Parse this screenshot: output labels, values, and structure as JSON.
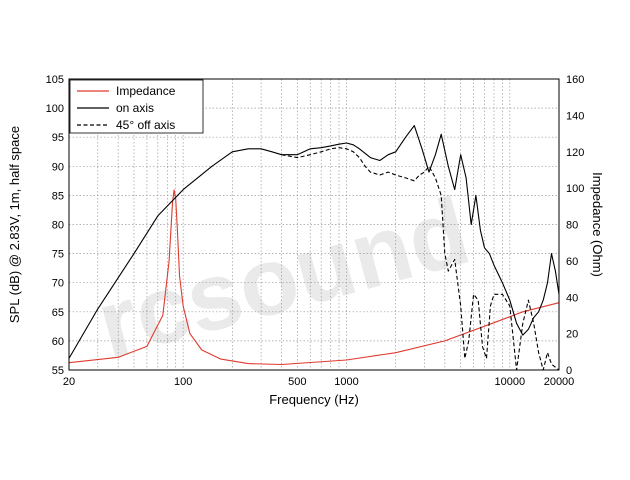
{
  "chart_data": {
    "type": "line",
    "xlabel": "Frequency (Hz)",
    "ylabel_left": "SPL (dB) @ 2.83V, 1m, half space",
    "ylabel_right": "Impedance (Ohm)",
    "xscale": "log",
    "xlim": [
      20,
      20000
    ],
    "ylim_left": [
      55,
      105
    ],
    "ylim_right": [
      0,
      160
    ],
    "x_ticks": [
      "20",
      "100",
      "500",
      "1000",
      "10000",
      "20000"
    ],
    "y_left_ticks": [
      "55",
      "60",
      "65",
      "70",
      "75",
      "80",
      "85",
      "90",
      "95",
      "100",
      "105"
    ],
    "y_right_ticks": [
      "0",
      "20",
      "40",
      "60",
      "80",
      "100",
      "120",
      "140",
      "160"
    ],
    "grid": true,
    "legend": {
      "placement": "top-left",
      "entries": [
        "Impedance",
        "on axis",
        "45° off axis"
      ]
    },
    "watermark": "rcsound",
    "series": [
      {
        "name": "Impedance",
        "axis": "right",
        "color": "#e03a2f",
        "style": "solid",
        "x": [
          20,
          40,
          60,
          75,
          82,
          86,
          88,
          90,
          92,
          95,
          100,
          110,
          130,
          170,
          250,
          400,
          1000,
          2000,
          4000,
          8000,
          12000,
          20000
        ],
        "y": [
          4,
          7,
          13,
          30,
          60,
          92,
          99,
          94,
          78,
          52,
          35,
          20,
          11,
          6,
          3.5,
          3,
          5.5,
          9.5,
          16,
          26,
          32,
          37
        ]
      },
      {
        "name": "on axis",
        "axis": "left",
        "color": "#000000",
        "style": "solid",
        "x": [
          20,
          30,
          50,
          70,
          100,
          150,
          200,
          250,
          300,
          350,
          400,
          500,
          600,
          700,
          800,
          900,
          1000,
          1100,
          1200,
          1400,
          1600,
          1800,
          2000,
          2300,
          2600,
          2900,
          3200,
          3500,
          3800,
          4200,
          4600,
          5000,
          5400,
          5800,
          6200,
          6600,
          7000,
          7500,
          8000,
          9000,
          10000,
          11000,
          12000,
          13000,
          14000,
          15000,
          16000,
          17000,
          18000,
          19000,
          20000
        ],
        "y": [
          57,
          65.5,
          75,
          81.5,
          86,
          90,
          92.5,
          93,
          93,
          92.5,
          92,
          92,
          93,
          93.2,
          93.5,
          93.8,
          94,
          93.7,
          93,
          91.5,
          91,
          92,
          92.5,
          95,
          97,
          93,
          89,
          92,
          95.5,
          90,
          86,
          92,
          88,
          80,
          85,
          79,
          76,
          75,
          73,
          70,
          67,
          63,
          61,
          62,
          64,
          65,
          67,
          70,
          75,
          72,
          68
        ]
      },
      {
        "name": "45° off axis",
        "axis": "left",
        "color": "#000000",
        "style": "dashed",
        "x": [
          400,
          500,
          600,
          700,
          800,
          900,
          1000,
          1100,
          1200,
          1300,
          1400,
          1600,
          1800,
          2000,
          2300,
          2600,
          2800,
          3000,
          3200,
          3500,
          3800,
          4000,
          4200,
          4600,
          5000,
          5300,
          5600,
          6000,
          6400,
          6800,
          7200,
          7600,
          8000,
          9000,
          10000,
          11000,
          12000,
          13000,
          14000,
          15000,
          16000,
          17000,
          18000,
          20000
        ],
        "y": [
          92,
          91.5,
          92,
          92.5,
          93,
          93.2,
          93,
          92.5,
          91.5,
          90,
          89,
          88.5,
          89,
          88.5,
          88,
          87.5,
          88.5,
          89,
          90,
          88,
          85,
          75,
          72,
          74,
          66,
          57,
          60,
          68,
          67,
          59,
          57,
          66,
          68,
          68,
          66,
          55,
          63,
          67,
          63,
          58,
          55,
          58,
          56,
          55
        ]
      }
    ]
  }
}
